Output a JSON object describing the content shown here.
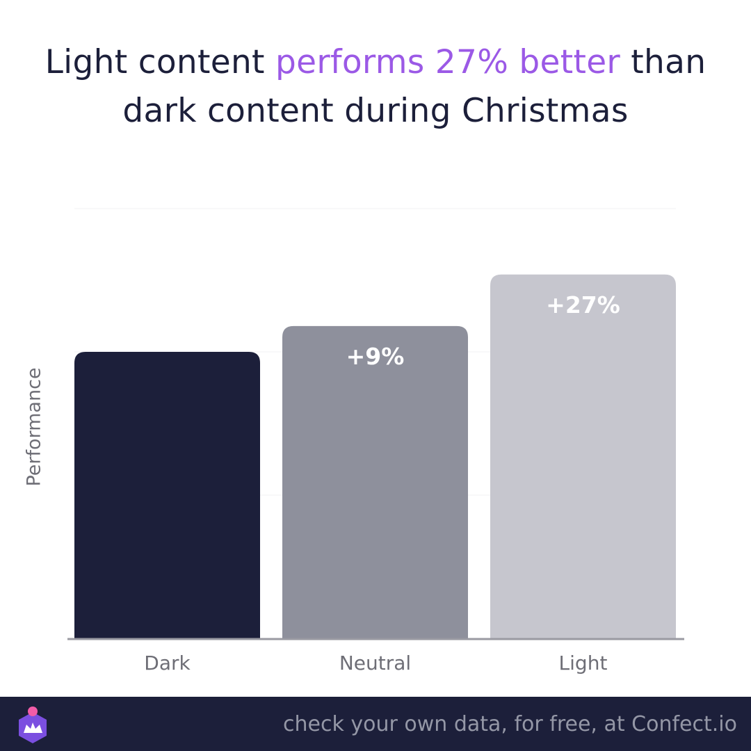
{
  "title": {
    "before": "Light content ",
    "highlight": "performs 27% better",
    "after_line1": " than",
    "line2": "dark content during Christmas"
  },
  "colors": {
    "title_text": "#1c1f3a",
    "highlight": "#9b59e6",
    "footer_bg": "#1c1f3a",
    "footer_text": "#9497a6",
    "logo_purple": "#7b4fe0",
    "logo_pink": "#f25ca8"
  },
  "chart_data": {
    "type": "bar",
    "categories": [
      "Dark",
      "Neutral",
      "Light"
    ],
    "values": [
      100,
      109,
      127
    ],
    "value_labels": [
      "",
      "+9%",
      "+27%"
    ],
    "bar_colors": [
      "#1c1f3a",
      "#8e909c",
      "#c6c6ce"
    ],
    "ylabel": "Performance",
    "ylim": [
      0,
      150
    ],
    "grid": true,
    "title": "Light content performs 27% better than dark content during Christmas"
  },
  "footer": {
    "text": "check your own data, for free, at Confect.io",
    "logo_icon": "confect-logo-icon"
  }
}
